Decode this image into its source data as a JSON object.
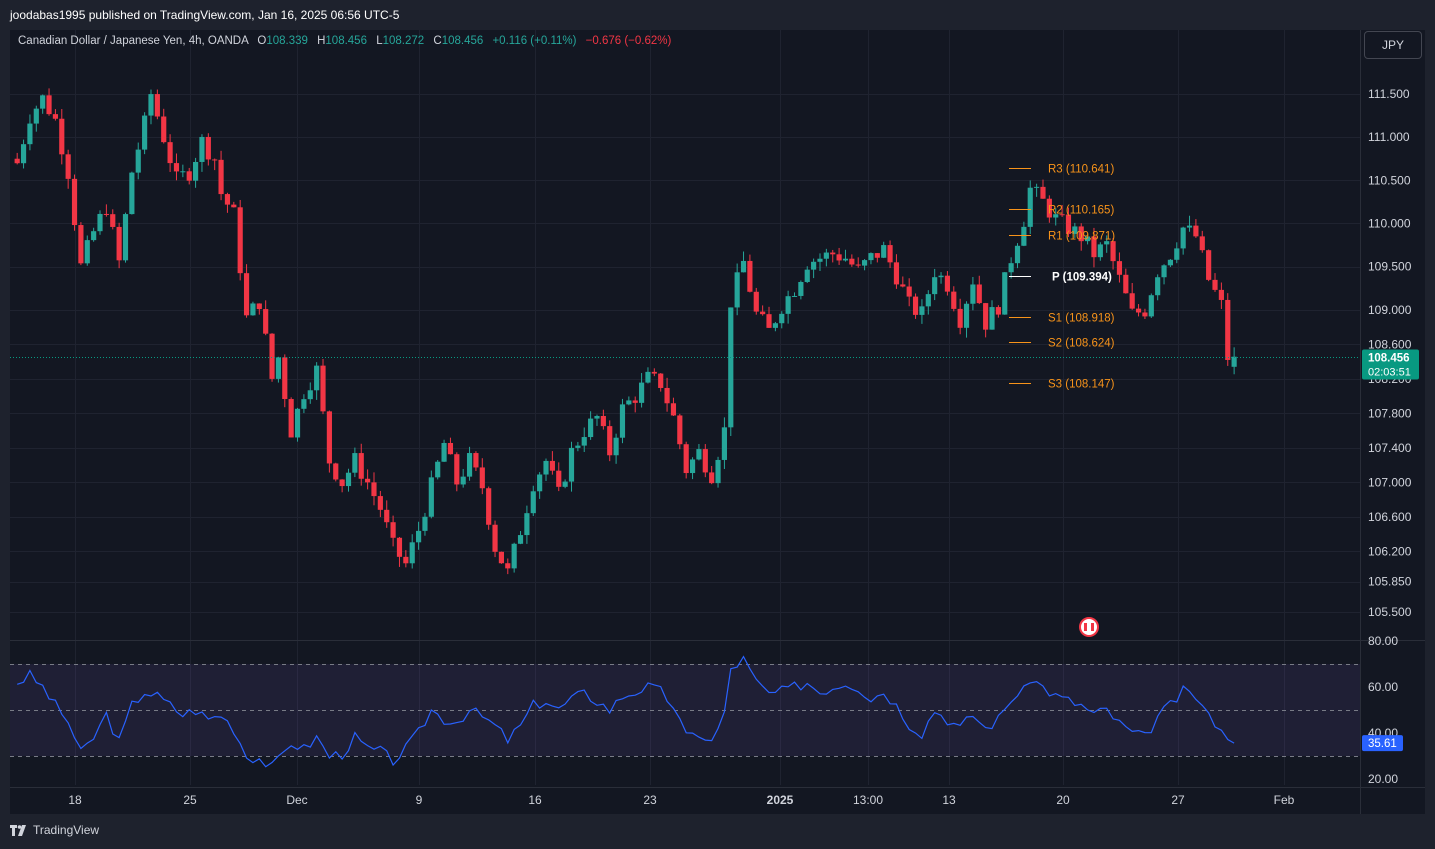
{
  "header": {
    "published_by": "joodabas1995 published on TradingView.com, Jan 16, 2025 06:56 UTC-5"
  },
  "legend": {
    "symbol": "Canadian Dollar / Japanese Yen, 4h, OANDA",
    "o_label": "O",
    "o_value": "108.339",
    "h_label": "H",
    "h_value": "108.456",
    "l_label": "L",
    "l_value": "108.272",
    "c_label": "C",
    "c_value": "108.456",
    "change_bar": "+0.116 (+0.11%)",
    "change_total": "−0.676 (−0.62%)"
  },
  "currency_button": "JPY",
  "branding": "TradingView",
  "colors": {
    "up": "#26a69a",
    "down": "#f23645",
    "pivot_levels": "#f7931a",
    "pivot_center": "#ffffff",
    "rsi_line": "#2962ff",
    "price_label_bg": "#089981",
    "rsi_label_bg": "#2962ff"
  },
  "chart_data": [
    {
      "type": "candlestick",
      "price_axis": {
        "ticks": [
          "111.500",
          "111.000",
          "110.500",
          "110.000",
          "109.500",
          "109.000",
          "108.600",
          "108.200",
          "107.800",
          "107.400",
          "107.000",
          "106.600",
          "106.200",
          "105.850",
          "105.500"
        ],
        "tick_values": [
          111.5,
          111.0,
          110.5,
          110.0,
          109.5,
          109.0,
          108.6,
          108.2,
          107.8,
          107.4,
          107.0,
          106.6,
          106.2,
          105.85,
          105.5
        ]
      },
      "time_axis": {
        "labels": [
          "18",
          "25",
          "Dec",
          "9",
          "16",
          "23",
          "2025",
          "13:00",
          "13",
          "20",
          "27",
          "Feb"
        ]
      },
      "current_price": {
        "value": 108.456,
        "label": "108.456",
        "countdown": "02:03:51"
      },
      "pivots": [
        {
          "name": "R3",
          "label": "R3 (110.641)",
          "value": 110.641
        },
        {
          "name": "R2",
          "label": "R2 (110.165)",
          "value": 110.165
        },
        {
          "name": "R1",
          "label": "R1 (109.871)",
          "value": 109.871
        },
        {
          "name": "P",
          "label": "P (109.394)",
          "value": 109.394
        },
        {
          "name": "S1",
          "label": "S1 (108.918)",
          "value": 108.918
        },
        {
          "name": "S2",
          "label": "S2 (108.624)",
          "value": 108.624
        },
        {
          "name": "S3",
          "label": "S3 (108.147)",
          "value": 108.147
        }
      ],
      "price_path": [
        [
          0,
          110.7
        ],
        [
          2,
          111.25
        ],
        [
          4,
          111.45
        ],
        [
          6,
          111.2
        ],
        [
          8,
          110.6
        ],
        [
          10,
          109.5
        ],
        [
          12,
          109.9
        ],
        [
          14,
          110.2
        ],
        [
          16,
          109.55
        ],
        [
          18,
          110.6
        ],
        [
          20,
          111.15
        ],
        [
          21,
          111.5
        ],
        [
          23,
          111.0
        ],
        [
          25,
          110.5
        ],
        [
          27,
          110.6
        ],
        [
          29,
          110.95
        ],
        [
          31,
          110.75
        ],
        [
          32,
          110.35
        ],
        [
          34,
          110.1
        ],
        [
          36,
          108.9
        ],
        [
          38,
          109.1
        ],
        [
          40,
          108.2
        ],
        [
          41,
          108.45
        ],
        [
          43,
          107.6
        ],
        [
          45,
          108.05
        ],
        [
          47,
          108.3
        ],
        [
          49,
          107.25
        ],
        [
          51,
          107.0
        ],
        [
          53,
          107.25
        ],
        [
          55,
          107.0
        ],
        [
          57,
          106.7
        ],
        [
          59,
          106.25
        ],
        [
          61,
          106.05
        ],
        [
          63,
          106.45
        ],
        [
          65,
          106.95
        ],
        [
          67,
          107.45
        ],
        [
          69,
          107.0
        ],
        [
          71,
          107.25
        ],
        [
          73,
          106.95
        ],
        [
          75,
          106.25
        ],
        [
          77,
          105.95
        ],
        [
          79,
          106.45
        ],
        [
          81,
          107.0
        ],
        [
          83,
          107.25
        ],
        [
          85,
          106.85
        ],
        [
          87,
          107.35
        ],
        [
          89,
          107.6
        ],
        [
          91,
          107.75
        ],
        [
          93,
          107.35
        ],
        [
          95,
          107.85
        ],
        [
          97,
          108.0
        ],
        [
          99,
          108.2
        ],
        [
          101,
          108.15
        ],
        [
          103,
          107.75
        ],
        [
          105,
          107.15
        ],
        [
          107,
          107.35
        ],
        [
          109,
          107.1
        ],
        [
          111,
          107.6
        ],
        [
          112,
          109.1
        ],
        [
          114,
          109.55
        ],
        [
          116,
          108.95
        ],
        [
          118,
          108.75
        ],
        [
          120,
          109.05
        ],
        [
          122,
          109.25
        ],
        [
          124,
          109.55
        ],
        [
          126,
          109.6
        ],
        [
          128,
          109.65
        ],
        [
          130,
          109.6
        ],
        [
          132,
          109.45
        ],
        [
          134,
          109.6
        ],
        [
          136,
          109.7
        ],
        [
          138,
          109.4
        ],
        [
          140,
          109.05
        ],
        [
          142,
          108.95
        ],
        [
          144,
          109.45
        ],
        [
          146,
          109.3
        ],
        [
          148,
          108.9
        ],
        [
          150,
          109.35
        ],
        [
          152,
          108.85
        ],
        [
          154,
          109.05
        ],
        [
          156,
          109.6
        ],
        [
          158,
          110.05
        ],
        [
          159,
          110.4
        ],
        [
          161,
          110.25
        ],
        [
          163,
          110.05
        ],
        [
          165,
          109.95
        ],
        [
          167,
          109.85
        ],
        [
          169,
          109.65
        ],
        [
          171,
          109.75
        ],
        [
          173,
          109.35
        ],
        [
          175,
          108.95
        ],
        [
          177,
          109.0
        ],
        [
          179,
          109.45
        ],
        [
          181,
          109.65
        ],
        [
          183,
          109.95
        ],
        [
          185,
          109.85
        ],
        [
          187,
          109.35
        ],
        [
          189,
          109.05
        ],
        [
          190,
          108.45
        ],
        [
          191,
          108.456
        ]
      ],
      "total_bars": 192
    },
    {
      "type": "line",
      "name": "RSI",
      "y_axis": {
        "ticks": [
          "80.00",
          "60.00",
          "40.00",
          "20.00"
        ],
        "tick_values": [
          80,
          60,
          40,
          20
        ]
      },
      "bands": {
        "upper": 70,
        "middle": 50,
        "lower": 30
      },
      "value": 35.61,
      "value_label": "35.61",
      "path": [
        [
          0,
          62
        ],
        [
          2,
          65
        ],
        [
          4,
          60
        ],
        [
          6,
          52
        ],
        [
          8,
          45
        ],
        [
          10,
          31
        ],
        [
          12,
          38
        ],
        [
          14,
          48
        ],
        [
          16,
          36
        ],
        [
          18,
          52
        ],
        [
          20,
          58
        ],
        [
          22,
          56
        ],
        [
          24,
          52
        ],
        [
          26,
          48
        ],
        [
          28,
          50
        ],
        [
          30,
          46
        ],
        [
          32,
          48
        ],
        [
          34,
          42
        ],
        [
          36,
          30
        ],
        [
          38,
          29
        ],
        [
          40,
          25
        ],
        [
          41,
          28
        ],
        [
          43,
          36
        ],
        [
          45,
          33
        ],
        [
          47,
          38
        ],
        [
          49,
          30
        ],
        [
          51,
          31
        ],
        [
          53,
          38
        ],
        [
          55,
          33
        ],
        [
          57,
          32
        ],
        [
          59,
          28
        ],
        [
          61,
          33
        ],
        [
          63,
          40
        ],
        [
          65,
          50
        ],
        [
          67,
          46
        ],
        [
          69,
          45
        ],
        [
          71,
          50
        ],
        [
          73,
          47
        ],
        [
          75,
          43
        ],
        [
          77,
          37
        ],
        [
          79,
          43
        ],
        [
          81,
          52
        ],
        [
          83,
          54
        ],
        [
          85,
          50
        ],
        [
          87,
          55
        ],
        [
          89,
          57
        ],
        [
          91,
          54
        ],
        [
          93,
          50
        ],
        [
          95,
          56
        ],
        [
          97,
          58
        ],
        [
          99,
          60
        ],
        [
          101,
          58
        ],
        [
          103,
          52
        ],
        [
          105,
          38
        ],
        [
          107,
          40
        ],
        [
          109,
          36
        ],
        [
          111,
          48
        ],
        [
          112,
          68
        ],
        [
          114,
          72
        ],
        [
          116,
          62
        ],
        [
          118,
          57
        ],
        [
          120,
          58
        ],
        [
          122,
          60
        ],
        [
          124,
          62
        ],
        [
          126,
          58
        ],
        [
          128,
          60
        ],
        [
          130,
          62
        ],
        [
          132,
          60
        ],
        [
          134,
          55
        ],
        [
          136,
          58
        ],
        [
          138,
          52
        ],
        [
          140,
          44
        ],
        [
          142,
          40
        ],
        [
          144,
          50
        ],
        [
          146,
          46
        ],
        [
          148,
          42
        ],
        [
          150,
          48
        ],
        [
          152,
          42
        ],
        [
          154,
          46
        ],
        [
          156,
          55
        ],
        [
          158,
          58
        ],
        [
          159,
          64
        ],
        [
          161,
          60
        ],
        [
          163,
          56
        ],
        [
          165,
          54
        ],
        [
          167,
          52
        ],
        [
          169,
          48
        ],
        [
          171,
          50
        ],
        [
          173,
          44
        ],
        [
          175,
          40
        ],
        [
          177,
          38
        ],
        [
          179,
          47
        ],
        [
          181,
          52
        ],
        [
          183,
          58
        ],
        [
          185,
          56
        ],
        [
          187,
          47
        ],
        [
          189,
          43
        ],
        [
          190,
          36
        ],
        [
          191,
          35.61
        ]
      ]
    }
  ]
}
